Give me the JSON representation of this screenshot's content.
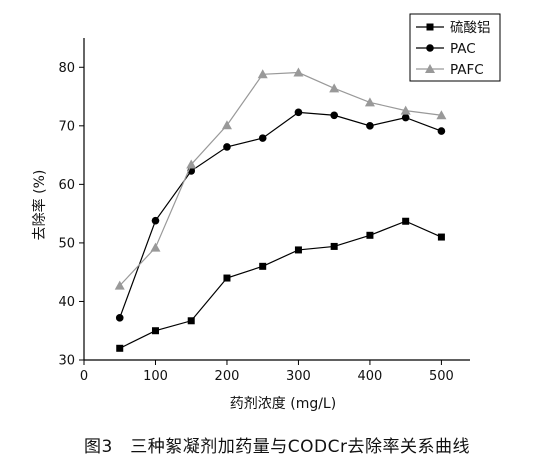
{
  "caption": "图3　三种絮凝剂加药量与CODCr去除率关系曲线",
  "chart_data": {
    "type": "line",
    "title": "",
    "xlabel": "药剂浓度 (mg/L)",
    "ylabel": "去除率 (%)",
    "xlim": [
      0,
      540
    ],
    "ylim": [
      30,
      85
    ],
    "xticks": [
      0,
      100,
      200,
      300,
      400,
      500
    ],
    "yticks": [
      30,
      40,
      50,
      60,
      70,
      80
    ],
    "grid": false,
    "legend_position": "top-right",
    "x": [
      50,
      100,
      150,
      200,
      250,
      300,
      350,
      400,
      450,
      500
    ],
    "series": [
      {
        "name": "硫酸铝",
        "marker": "square",
        "color": "#000000",
        "values": [
          32,
          35,
          36.7,
          44,
          46,
          48.8,
          49.4,
          51.3,
          53.7,
          51
        ]
      },
      {
        "name": "PAC",
        "marker": "circle",
        "color": "#000000",
        "values": [
          37.2,
          53.8,
          62.3,
          66.4,
          67.9,
          72.3,
          71.8,
          70,
          71.4,
          69.1
        ]
      },
      {
        "name": "PAFC",
        "marker": "triangle",
        "color": "#999999",
        "values": [
          42.7,
          49.2,
          63.4,
          70.1,
          78.8,
          79.1,
          76.4,
          74,
          72.6,
          71.8
        ]
      }
    ]
  }
}
